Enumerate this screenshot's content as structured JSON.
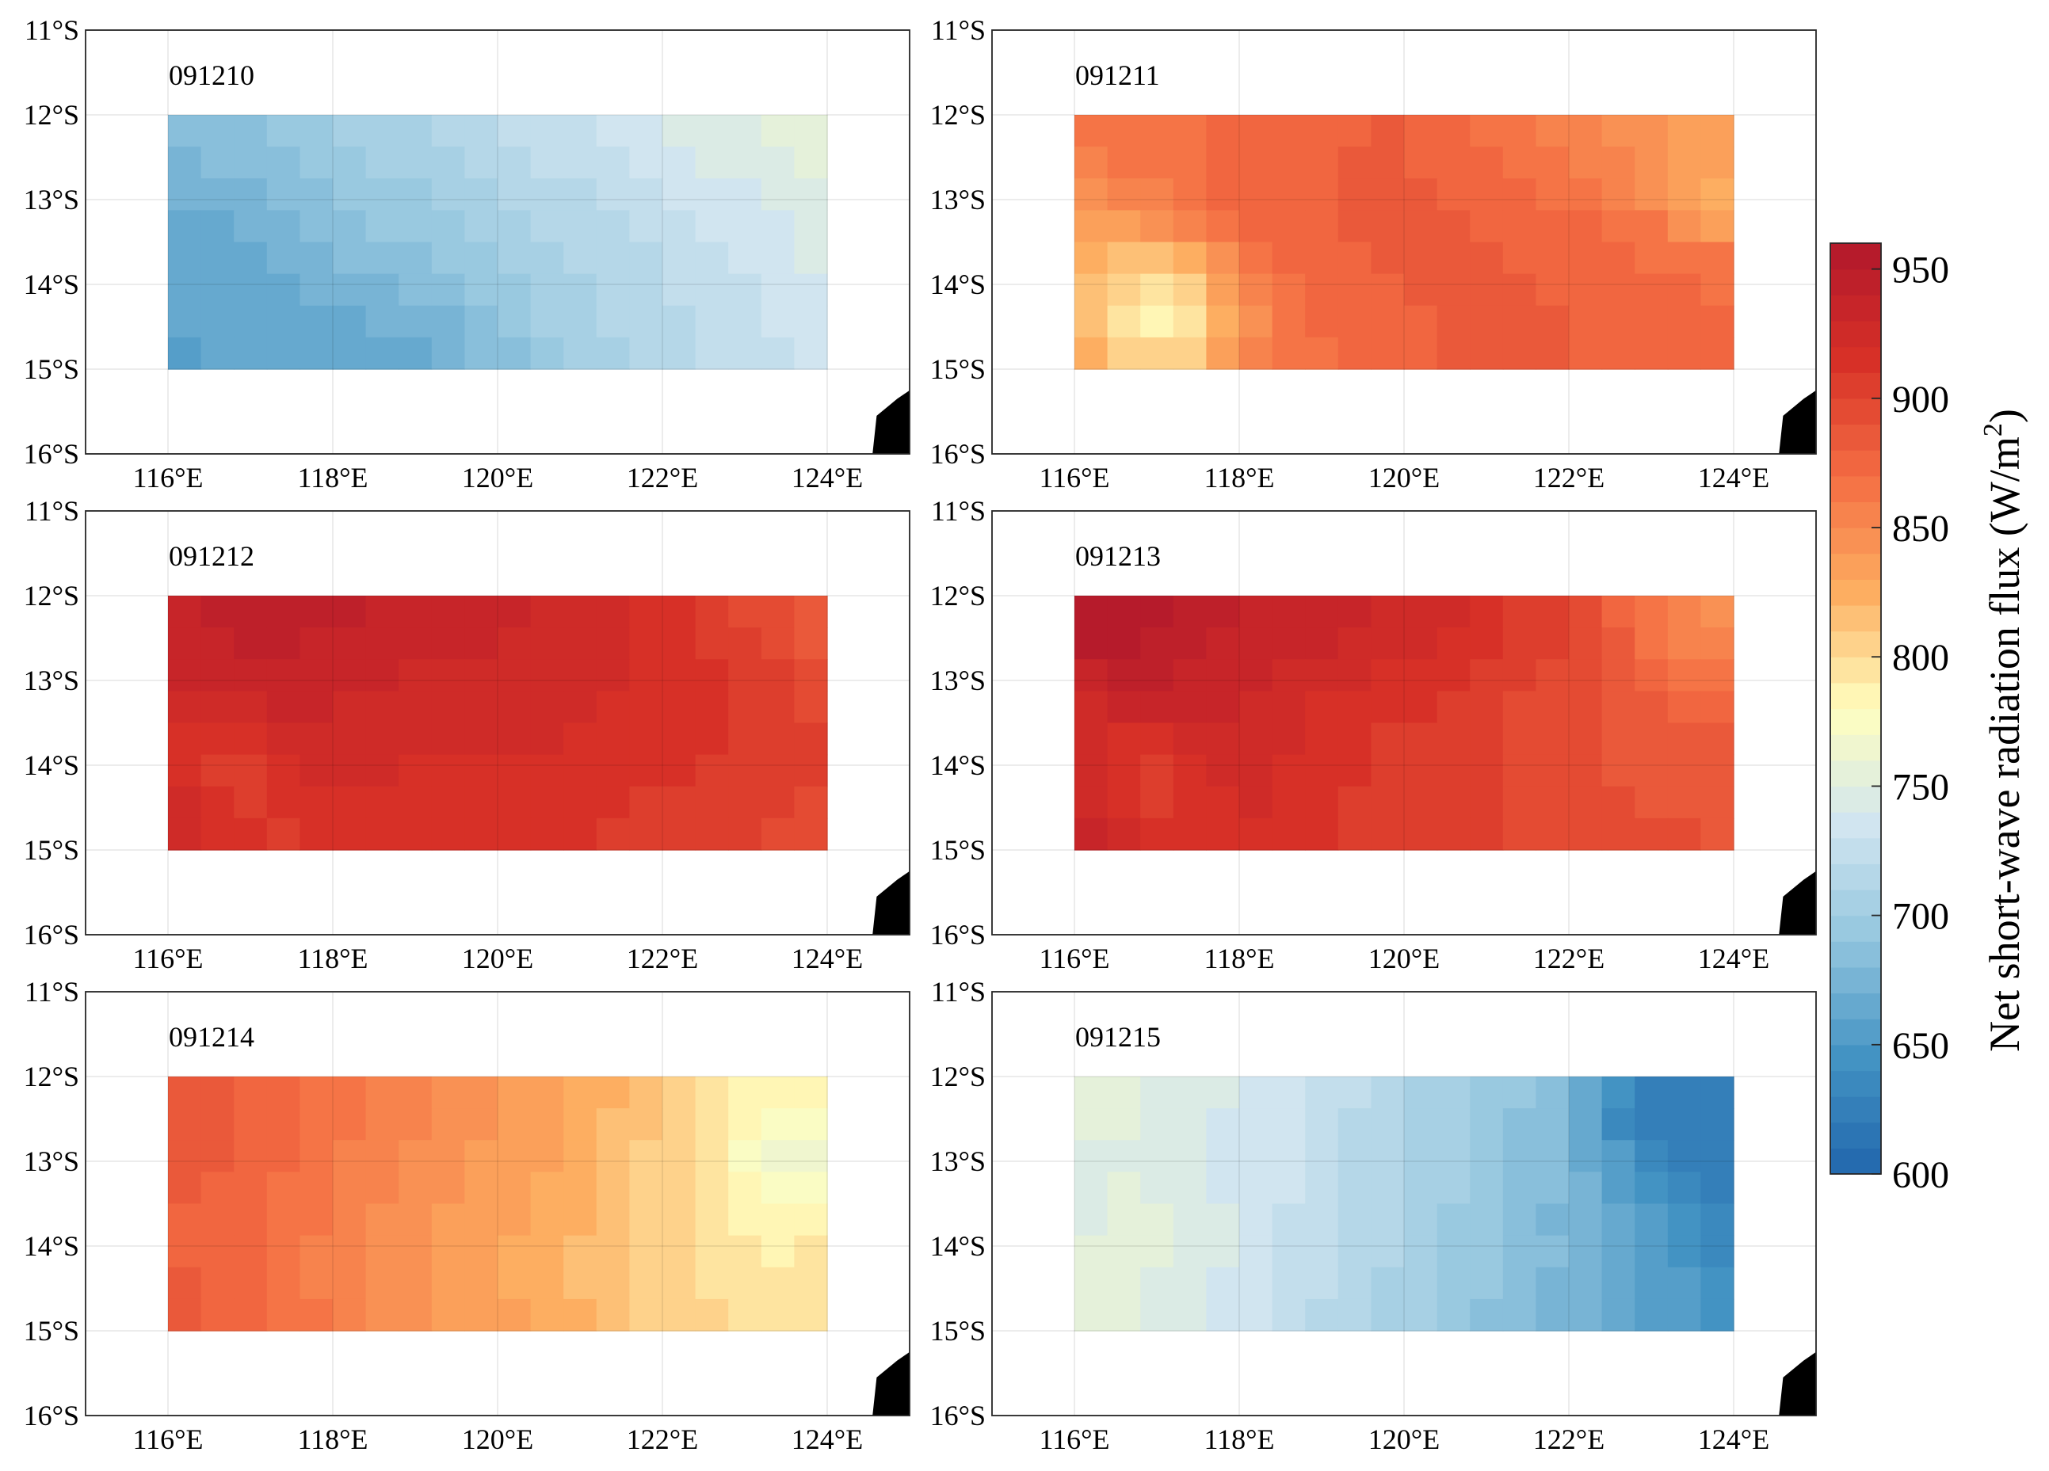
{
  "chart_data": {
    "type": "heatmap",
    "x_ticks": [
      "116°E",
      "118°E",
      "120°E",
      "122°E",
      "124°E"
    ],
    "y_ticks": [
      "11°S",
      "12°S",
      "13°S",
      "14°S",
      "15°S",
      "16°S"
    ],
    "xlim_deg_E": [
      115,
      125
    ],
    "ylim_deg_S": [
      11,
      16
    ],
    "data_extent": {
      "lon": [
        116,
        124
      ],
      "lat_S": [
        12,
        15
      ]
    },
    "grid": true,
    "colorbar": {
      "label": "Net short-wave radiation flux (W/m",
      "label_superscript": "2",
      "label_close": ")",
      "min": 600,
      "max": 960,
      "ticks": [
        "600",
        "650",
        "700",
        "750",
        "800",
        "850",
        "900",
        "950"
      ],
      "tick_values": [
        600,
        650,
        700,
        750,
        800,
        850,
        900,
        950
      ],
      "colormap": [
        "#2166ac",
        "#4393c3",
        "#92c5de",
        "#d1e5f0",
        "#ffffbf",
        "#fdae61",
        "#f46d43",
        "#d73027",
        "#b2182b"
      ],
      "levels": 36
    },
    "land_color": "#000000",
    "panels": [
      {
        "title": "091210",
        "grid": [
          [
            680,
            684,
            688,
            692,
            696,
            700,
            704,
            708,
            712,
            716,
            720,
            724,
            728,
            732,
            736,
            740,
            744,
            748,
            752,
            756
          ],
          [
            676,
            680,
            684,
            688,
            692,
            696,
            700,
            704,
            708,
            712,
            716,
            720,
            724,
            728,
            732,
            736,
            740,
            744,
            748,
            752
          ],
          [
            670,
            674,
            678,
            682,
            686,
            690,
            694,
            698,
            702,
            706,
            710,
            714,
            718,
            722,
            726,
            730,
            734,
            738,
            742,
            748
          ],
          [
            666,
            668,
            672,
            676,
            680,
            684,
            690,
            694,
            698,
            702,
            706,
            710,
            714,
            718,
            722,
            726,
            730,
            734,
            738,
            744
          ],
          [
            664,
            666,
            668,
            672,
            676,
            680,
            684,
            688,
            692,
            698,
            702,
            706,
            710,
            714,
            718,
            722,
            726,
            730,
            734,
            740
          ],
          [
            662,
            664,
            666,
            668,
            670,
            674,
            678,
            682,
            686,
            692,
            698,
            704,
            708,
            712,
            716,
            720,
            724,
            728,
            732,
            738
          ],
          [
            660,
            662,
            664,
            664,
            666,
            668,
            670,
            674,
            678,
            684,
            692,
            700,
            706,
            710,
            714,
            718,
            722,
            726,
            730,
            736
          ],
          [
            658,
            660,
            660,
            662,
            662,
            664,
            664,
            668,
            672,
            680,
            688,
            696,
            702,
            708,
            712,
            716,
            720,
            724,
            728,
            734
          ]
        ]
      },
      {
        "title": "091211",
        "grid": [
          [
            860,
            862,
            866,
            868,
            870,
            872,
            874,
            876,
            878,
            880,
            878,
            874,
            868,
            862,
            856,
            850,
            846,
            842,
            838,
            836
          ],
          [
            856,
            860,
            864,
            868,
            872,
            874,
            876,
            878,
            880,
            880,
            878,
            876,
            872,
            868,
            862,
            856,
            850,
            842,
            834,
            830
          ],
          [
            848,
            852,
            858,
            864,
            870,
            874,
            876,
            878,
            880,
            880,
            880,
            878,
            876,
            872,
            868,
            864,
            858,
            848,
            830,
            820
          ],
          [
            838,
            836,
            842,
            852,
            864,
            872,
            876,
            878,
            880,
            880,
            880,
            880,
            878,
            876,
            874,
            870,
            866,
            860,
            844,
            832
          ],
          [
            826,
            818,
            814,
            824,
            846,
            862,
            872,
            876,
            878,
            880,
            880,
            880,
            880,
            878,
            876,
            874,
            872,
            868,
            864,
            860
          ],
          [
            816,
            804,
            796,
            806,
            832,
            852,
            866,
            872,
            876,
            878,
            880,
            880,
            880,
            880,
            878,
            876,
            874,
            872,
            870,
            868
          ],
          [
            814,
            798,
            786,
            796,
            824,
            848,
            862,
            870,
            874,
            876,
            878,
            880,
            880,
            880,
            880,
            878,
            876,
            874,
            872,
            870
          ],
          [
            820,
            808,
            800,
            808,
            830,
            850,
            862,
            868,
            872,
            876,
            878,
            880,
            880,
            880,
            880,
            878,
            876,
            874,
            872,
            870
          ]
        ]
      },
      {
        "title": "091212",
        "grid": [
          [
            934,
            940,
            944,
            944,
            942,
            940,
            938,
            936,
            934,
            932,
            930,
            928,
            924,
            920,
            916,
            912,
            906,
            898,
            890,
            884
          ],
          [
            934,
            938,
            940,
            940,
            938,
            936,
            934,
            932,
            930,
            930,
            928,
            926,
            924,
            922,
            918,
            914,
            908,
            902,
            894,
            886
          ],
          [
            930,
            934,
            936,
            936,
            934,
            932,
            930,
            928,
            928,
            928,
            926,
            924,
            922,
            920,
            918,
            914,
            910,
            906,
            900,
            892
          ],
          [
            922,
            926,
            928,
            930,
            930,
            928,
            926,
            924,
            924,
            924,
            924,
            922,
            920,
            918,
            916,
            914,
            912,
            908,
            904,
            898
          ],
          [
            914,
            910,
            912,
            920,
            924,
            924,
            922,
            920,
            920,
            920,
            920,
            920,
            918,
            916,
            914,
            912,
            910,
            908,
            906,
            904
          ],
          [
            918,
            908,
            904,
            912,
            920,
            922,
            920,
            918,
            918,
            918,
            918,
            918,
            916,
            914,
            912,
            910,
            908,
            906,
            904,
            902
          ],
          [
            920,
            912,
            906,
            910,
            916,
            918,
            916,
            914,
            914,
            914,
            914,
            914,
            912,
            910,
            908,
            906,
            904,
            902,
            900,
            898
          ],
          [
            922,
            916,
            910,
            906,
            910,
            912,
            912,
            912,
            912,
            912,
            912,
            912,
            910,
            908,
            906,
            904,
            902,
            900,
            898,
            896
          ]
        ]
      },
      {
        "title": "091213",
        "grid": [
          [
            956,
            958,
            954,
            946,
            940,
            936,
            934,
            932,
            930,
            928,
            924,
            920,
            914,
            908,
            900,
            890,
            878,
            862,
            850,
            846
          ],
          [
            950,
            952,
            948,
            942,
            938,
            934,
            932,
            930,
            928,
            924,
            920,
            916,
            912,
            906,
            900,
            892,
            880,
            868,
            858,
            852
          ],
          [
            938,
            942,
            942,
            938,
            934,
            930,
            928,
            926,
            922,
            918,
            914,
            910,
            906,
            902,
            898,
            892,
            884,
            876,
            868,
            862
          ],
          [
            926,
            930,
            934,
            934,
            930,
            926,
            922,
            918,
            914,
            912,
            910,
            906,
            902,
            898,
            894,
            890,
            886,
            882,
            878,
            874
          ],
          [
            920,
            914,
            916,
            922,
            926,
            924,
            920,
            916,
            912,
            908,
            906,
            904,
            900,
            896,
            892,
            890,
            888,
            886,
            884,
            882
          ],
          [
            922,
            910,
            902,
            910,
            920,
            922,
            918,
            914,
            910,
            906,
            904,
            902,
            900,
            896,
            892,
            890,
            888,
            886,
            884,
            884
          ],
          [
            926,
            914,
            906,
            910,
            918,
            920,
            916,
            912,
            908,
            906,
            904,
            902,
            900,
            898,
            894,
            892,
            890,
            888,
            888,
            886
          ],
          [
            930,
            922,
            916,
            916,
            918,
            918,
            914,
            910,
            908,
            906,
            904,
            902,
            900,
            898,
            896,
            894,
            892,
            890,
            890,
            888
          ]
        ]
      },
      {
        "title": "091214",
        "grid": [
          [
            884,
            882,
            878,
            874,
            868,
            862,
            858,
            852,
            846,
            842,
            838,
            834,
            828,
            820,
            812,
            804,
            796,
            788,
            784,
            786
          ],
          [
            884,
            880,
            876,
            872,
            866,
            860,
            856,
            850,
            844,
            840,
            836,
            832,
            826,
            818,
            810,
            802,
            792,
            780,
            770,
            774
          ],
          [
            882,
            880,
            876,
            870,
            864,
            858,
            852,
            848,
            842,
            838,
            834,
            830,
            824,
            816,
            808,
            800,
            790,
            776,
            762,
            768
          ],
          [
            880,
            878,
            874,
            868,
            862,
            856,
            850,
            846,
            840,
            836,
            832,
            828,
            822,
            816,
            808,
            800,
            790,
            780,
            772,
            776
          ],
          [
            878,
            876,
            872,
            866,
            860,
            854,
            848,
            844,
            838,
            834,
            830,
            826,
            820,
            814,
            808,
            800,
            792,
            786,
            782,
            784
          ],
          [
            878,
            874,
            870,
            864,
            858,
            852,
            846,
            842,
            836,
            832,
            828,
            824,
            818,
            812,
            806,
            800,
            794,
            790,
            788,
            790
          ],
          [
            880,
            876,
            870,
            864,
            858,
            852,
            846,
            840,
            836,
            832,
            828,
            822,
            818,
            812,
            806,
            800,
            796,
            792,
            790,
            792
          ],
          [
            882,
            878,
            872,
            866,
            860,
            854,
            848,
            842,
            838,
            834,
            830,
            824,
            820,
            814,
            808,
            804,
            800,
            798,
            796,
            798
          ]
        ]
      },
      {
        "title": "091215",
        "grid": [
          [
            754,
            752,
            748,
            744,
            740,
            736,
            732,
            726,
            720,
            714,
            708,
            702,
            696,
            690,
            682,
            668,
            640,
            626,
            624,
            628
          ],
          [
            752,
            750,
            746,
            742,
            738,
            734,
            730,
            724,
            718,
            712,
            706,
            700,
            694,
            688,
            680,
            664,
            638,
            624,
            622,
            624
          ],
          [
            746,
            748,
            746,
            742,
            738,
            734,
            730,
            724,
            718,
            712,
            706,
            700,
            694,
            688,
            680,
            668,
            652,
            638,
            628,
            620
          ],
          [
            744,
            750,
            748,
            744,
            738,
            734,
            730,
            724,
            718,
            712,
            706,
            700,
            694,
            688,
            680,
            670,
            658,
            646,
            634,
            622
          ],
          [
            748,
            752,
            750,
            746,
            740,
            734,
            728,
            722,
            716,
            710,
            704,
            698,
            692,
            686,
            678,
            670,
            660,
            650,
            640,
            630
          ],
          [
            752,
            754,
            750,
            746,
            740,
            734,
            728,
            722,
            716,
            710,
            704,
            698,
            692,
            686,
            680,
            672,
            664,
            654,
            646,
            638
          ],
          [
            754,
            752,
            748,
            744,
            738,
            732,
            726,
            720,
            714,
            708,
            702,
            696,
            690,
            684,
            678,
            672,
            664,
            656,
            650,
            644
          ],
          [
            752,
            750,
            746,
            742,
            736,
            730,
            724,
            718,
            712,
            706,
            700,
            694,
            688,
            682,
            676,
            670,
            664,
            658,
            652,
            648
          ]
        ]
      }
    ]
  }
}
